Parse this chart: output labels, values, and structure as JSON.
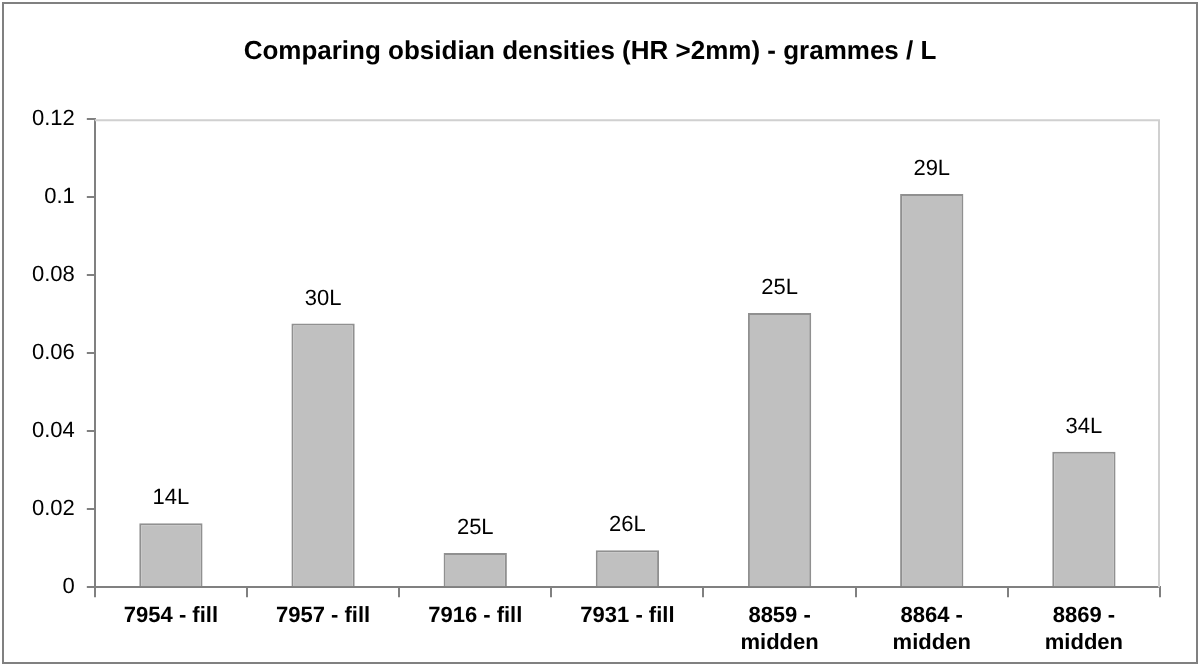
{
  "chart_data": {
    "type": "bar",
    "title": "Comparing obsidian densities (HR >2mm) - grammes / L",
    "categories": [
      "7954 - fill",
      "7957 - fill",
      "7916 - fill",
      "7931 - fill",
      "8859 - midden",
      "8864 - midden",
      "8869 - midden"
    ],
    "values": [
      0.0164,
      0.0676,
      0.0088,
      0.0095,
      0.0703,
      0.1008,
      0.0347
    ],
    "annotations": [
      {
        "text": "14L",
        "x": "7954 - fill",
        "y": 0.0164
      },
      {
        "text": "30L",
        "x": "7957 - fill",
        "y": 0.0676
      },
      {
        "text": "25L",
        "x": "7916 - fill",
        "y": 0.0088
      },
      {
        "text": "26L",
        "x": "7931 - fill",
        "y": 0.0095
      },
      {
        "text": "25L",
        "x": "8859 - midden",
        "y": 0.0703
      },
      {
        "text": "29L",
        "x": "8864 - midden",
        "y": 0.1008
      },
      {
        "text": "34L",
        "x": "8869 - midden",
        "y": 0.0347
      }
    ],
    "color": "#c0c0c0",
    "ylim": [
      0,
      0.12
    ],
    "yticks": [
      0,
      0.02,
      0.04,
      0.06,
      0.08,
      0.1,
      0.12
    ],
    "grid": false,
    "legend": false
  }
}
